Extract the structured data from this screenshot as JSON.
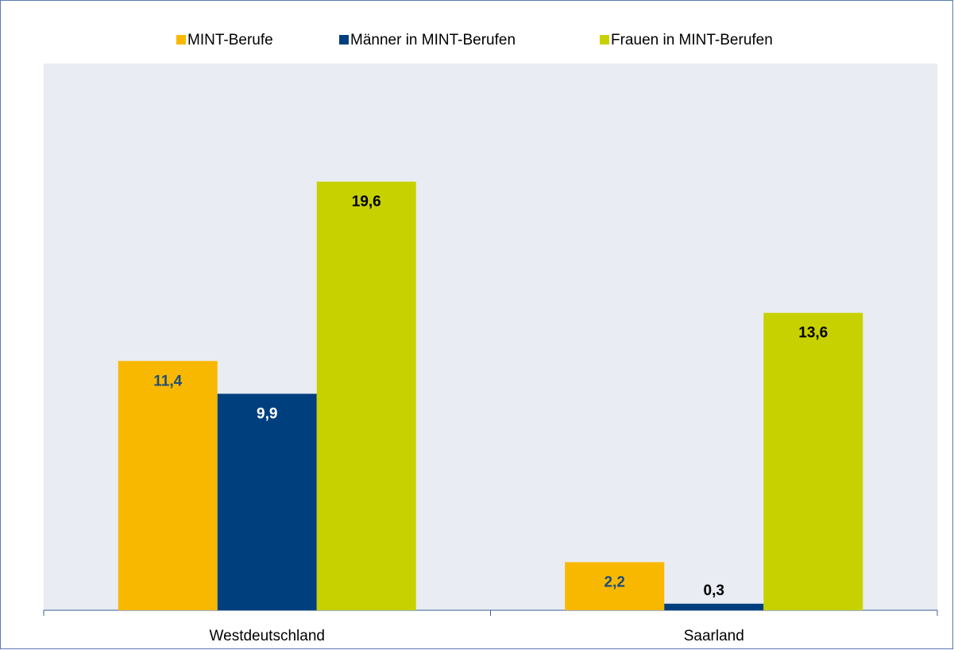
{
  "chart_data": {
    "type": "bar",
    "categories": [
      "Westdeutschland",
      "Saarland"
    ],
    "series": [
      {
        "name": "MINT-Berufe",
        "color": "#f9b800",
        "values": [
          11.4,
          2.2
        ],
        "value_labels": [
          "11,4",
          "2,2"
        ]
      },
      {
        "name": "Männer in MINT-Berufen",
        "color": "#003f7d",
        "values": [
          9.9,
          0.3
        ],
        "value_labels": [
          "9,9",
          "0,3"
        ]
      },
      {
        "name": "Frauen in MINT-Berufen",
        "color": "#c8d100",
        "values": [
          19.6,
          13.6
        ],
        "value_labels": [
          "19,6",
          "13,6"
        ]
      }
    ],
    "ylim": [
      0,
      25
    ],
    "legend": "top"
  }
}
